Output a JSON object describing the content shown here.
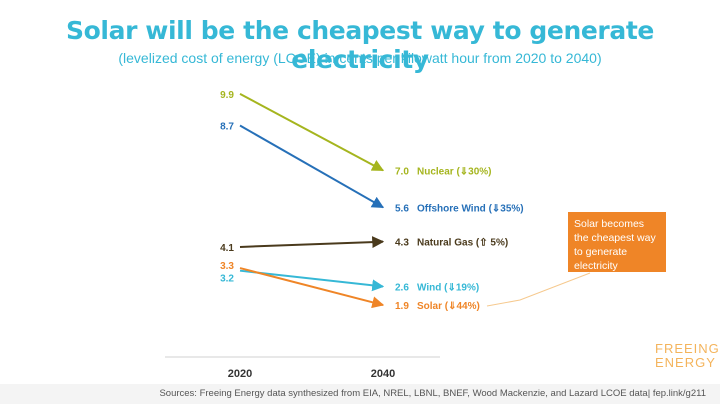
{
  "header": {
    "title": "Solar will be the cheapest way to generate electricity",
    "subtitle": "(levelized cost of energy (LCOE) in cents per kilowatt hour from 2020 to 2040)"
  },
  "callout": {
    "text": "Solar becomes the cheapest way to generate electricity",
    "color": "#ef8527"
  },
  "brand": {
    "line1": "FREEING",
    "line2": "ENERGY"
  },
  "footer": {
    "source": "Sources: Freeing Energy data synthesized from EIA, NREL, LBNL, BNEF, Wood Mackenzie, and Lazard LCOE data| fep.link/g211"
  },
  "chart_data": {
    "type": "line",
    "categories": [
      "2020",
      "2040"
    ],
    "series": [
      {
        "name": "Nuclear",
        "change": "(⇓30%)",
        "values": [
          9.9,
          7.0
        ],
        "start_label": "9.9",
        "end_label": "7.0",
        "color": "#a5b51e"
      },
      {
        "name": "Offshore Wind",
        "change": "(⇓35%)",
        "values": [
          8.7,
          5.6
        ],
        "start_label": "8.7",
        "end_label": "5.6",
        "color": "#2670b8"
      },
      {
        "name": "Natural Gas",
        "change": "(⇧ 5%)",
        "values": [
          4.1,
          4.3
        ],
        "start_label": "4.1",
        "end_label": "4.3",
        "color": "#4a3a1c"
      },
      {
        "name": "Wind",
        "change": "(⇓19%)",
        "values": [
          3.2,
          2.6
        ],
        "start_label": "3.2",
        "end_label": "2.6",
        "color": "#36b8d6"
      },
      {
        "name": "Solar",
        "change": "(⇓44%)",
        "values": [
          3.3,
          1.9
        ],
        "start_label": "3.3",
        "end_label": "1.9",
        "color": "#ef8527"
      }
    ]
  }
}
